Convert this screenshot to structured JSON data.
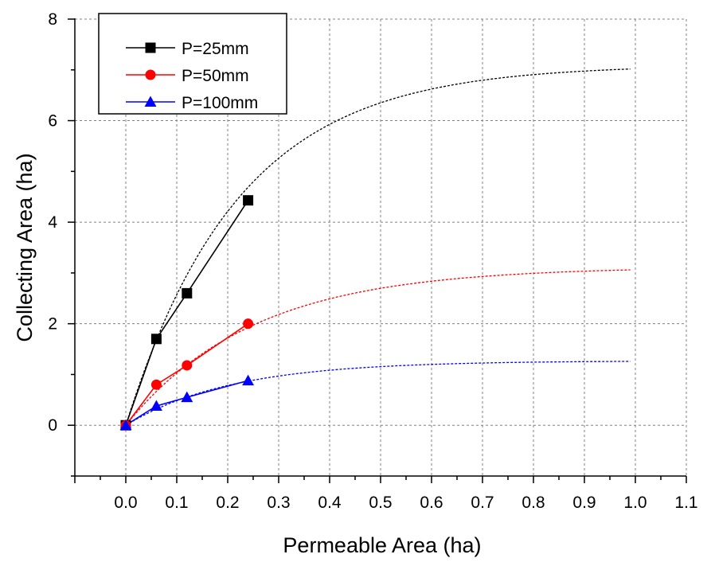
{
  "chart_data": {
    "type": "line",
    "title": "",
    "xlabel": "Permeable Area (ha)",
    "ylabel": "Collecting Area (ha)",
    "xlim": [
      -0.1,
      1.1
    ],
    "ylim": [
      -1,
      8
    ],
    "xticks": [
      0.0,
      0.1,
      0.2,
      0.3,
      0.4,
      0.5,
      0.6,
      0.7,
      0.8,
      0.9,
      1.0,
      1.1
    ],
    "xtick_labels": [
      "0.0",
      "0.1",
      "0.2",
      "0.3",
      "0.4",
      "0.5",
      "0.6",
      "0.7",
      "0.8",
      "0.9",
      "1.0",
      "1.1"
    ],
    "yticks": [
      0,
      2,
      4,
      6,
      8
    ],
    "ytick_labels": [
      "0",
      "2",
      "4",
      "6",
      "8"
    ],
    "grid": true,
    "legend_position": "top-left",
    "series": [
      {
        "name": "P=25mm",
        "color": "#000000",
        "marker": "square",
        "x": [
          0,
          0.06,
          0.12,
          0.24
        ],
        "y": [
          0,
          1.7,
          2.6,
          4.43
        ],
        "fit": {
          "asymptote": 7.1,
          "rate": 4.5
        }
      },
      {
        "name": "P=50mm",
        "color": "#ff0000",
        "marker": "circle",
        "x": [
          0,
          0.06,
          0.12,
          0.24
        ],
        "y": [
          0,
          0.8,
          1.18,
          2.0
        ],
        "fit": {
          "asymptote": 3.12,
          "rate": 4.0
        }
      },
      {
        "name": "P=100mm",
        "color": "#0000ff",
        "marker": "triangle",
        "x": [
          0,
          0.06,
          0.12,
          0.24
        ],
        "y": [
          0,
          0.38,
          0.55,
          0.88
        ],
        "fit": {
          "asymptote": 1.27,
          "rate": 4.8
        }
      }
    ]
  }
}
